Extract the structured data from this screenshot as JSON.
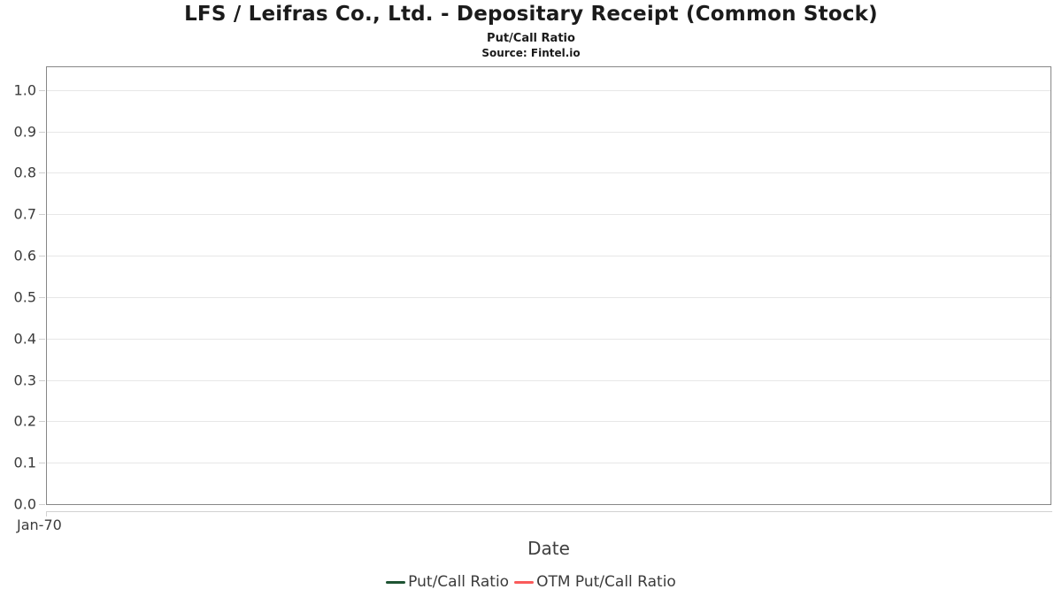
{
  "page": {
    "background": "#ffffff"
  },
  "chart_data": {
    "type": "line",
    "title": "LFS / Leifras Co., Ltd. - Depositary Receipt (Common Stock)",
    "subtitle": "Put/Call Ratio",
    "source": "Source: Fintel.io",
    "xlabel": "Date",
    "ylabel": "",
    "x_ticks": [
      "Jan-70"
    ],
    "y_ticks": [
      "0.0",
      "0.1",
      "0.2",
      "0.3",
      "0.4",
      "0.5",
      "0.6",
      "0.7",
      "0.8",
      "0.9",
      "1.0"
    ],
    "ylim": [
      0,
      1.055
    ],
    "grid": "horizontal-only",
    "legend_position": "bottom-center",
    "plot_empty": true,
    "series": [
      {
        "name": "Put/Call Ratio",
        "color": "#1e5433",
        "values": []
      },
      {
        "name": "OTM Put/Call Ratio",
        "color": "#fa5a5a",
        "values": []
      }
    ]
  }
}
